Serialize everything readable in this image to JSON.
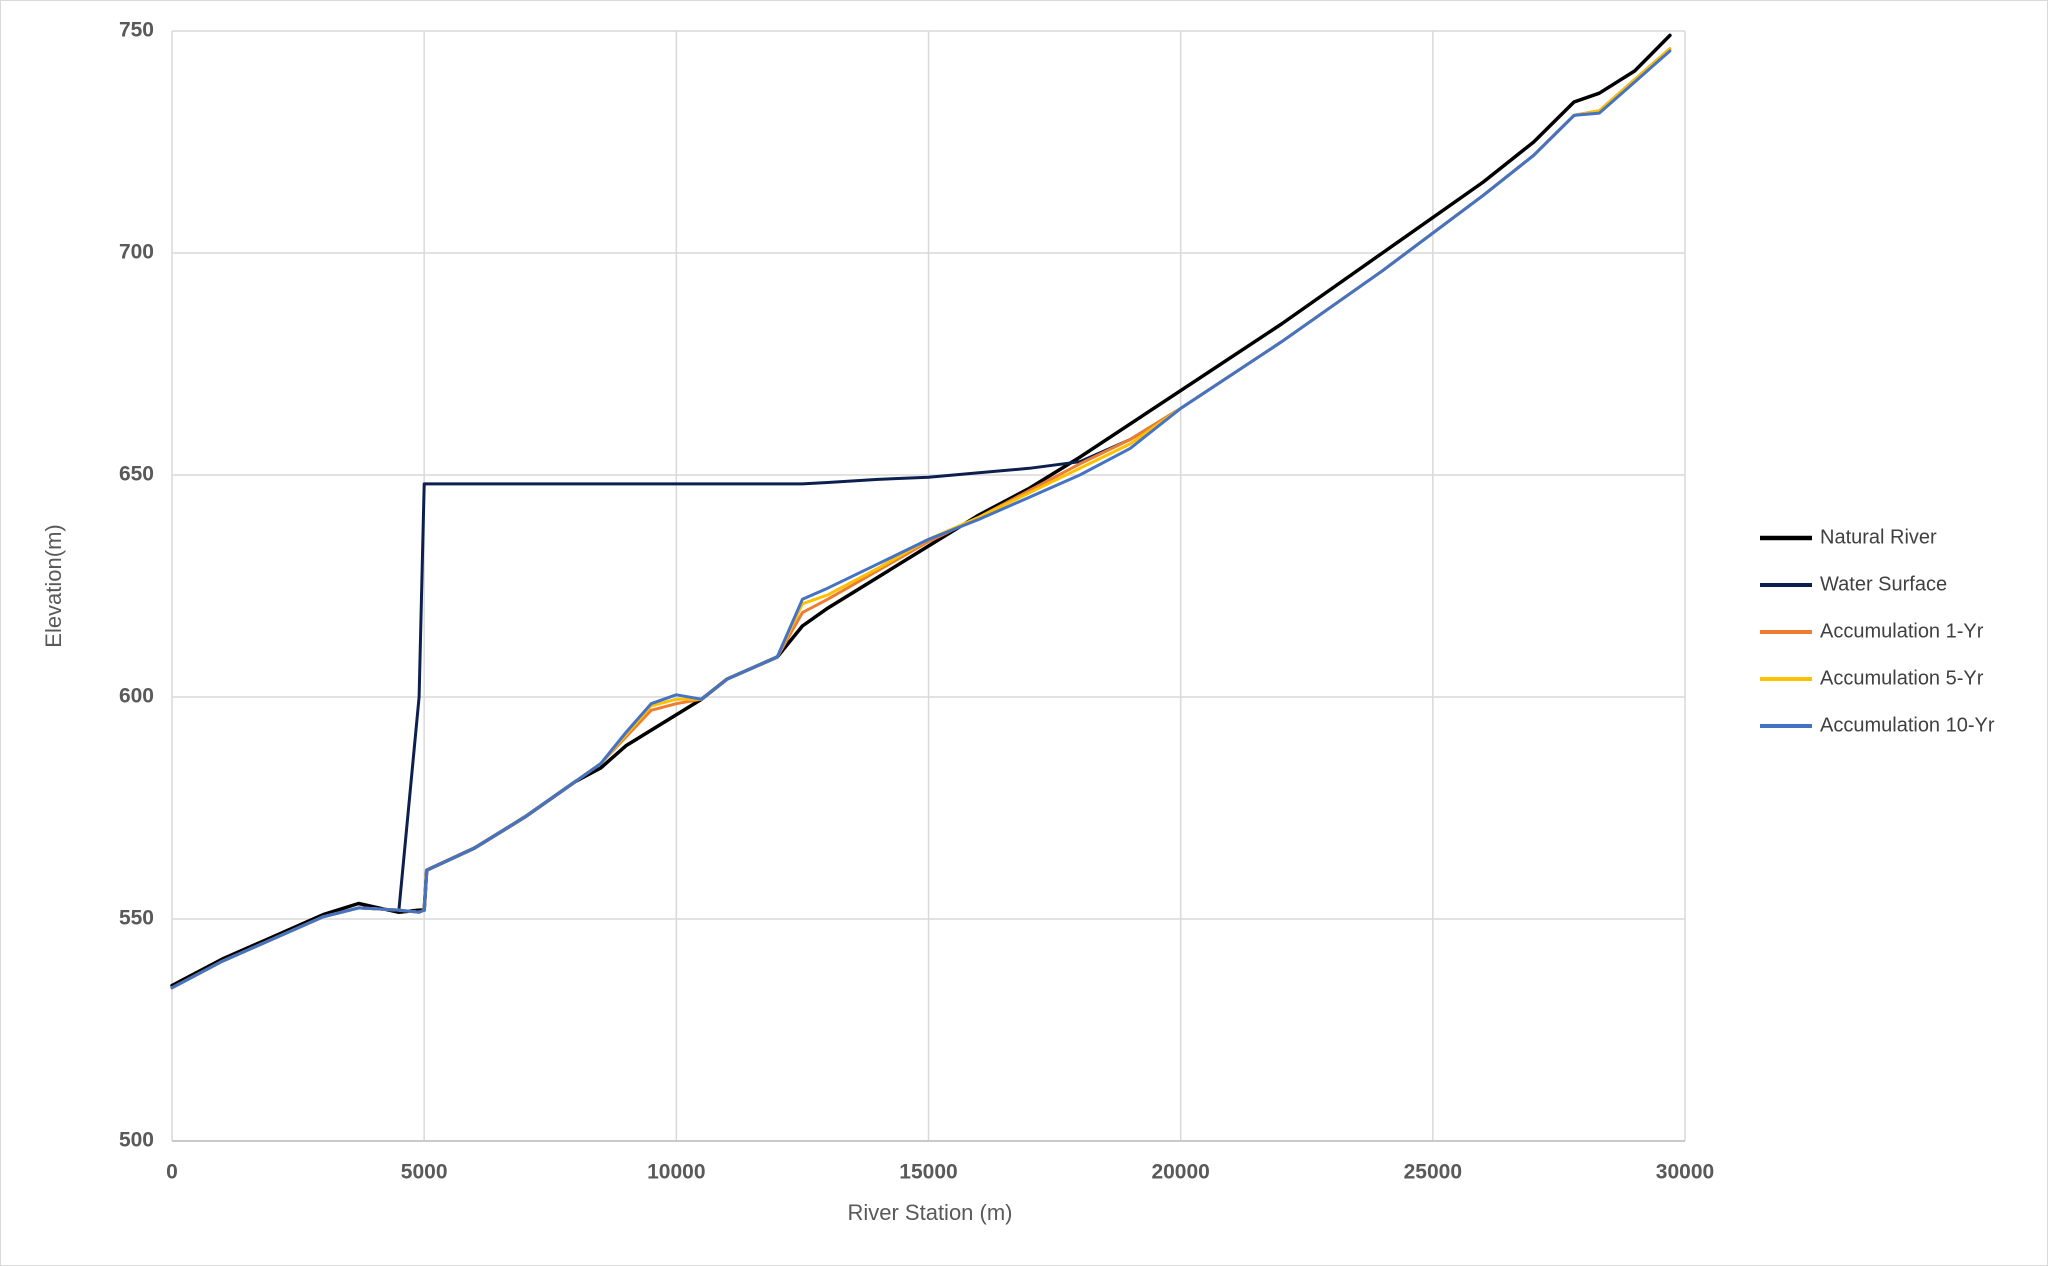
{
  "chart_data": {
    "type": "line",
    "x_label": "River Station (m)",
    "y_label": "Elevation(m)",
    "x": [
      0,
      1000,
      2000,
      3000,
      3700,
      4500,
      4900,
      5000,
      5050,
      6000,
      7000,
      8000,
      8500,
      9000,
      9500,
      10000,
      10500,
      11000,
      12000,
      12500,
      13000,
      14000,
      15000,
      16000,
      17000,
      18000,
      19000,
      20000,
      22000,
      24000,
      26000,
      27000,
      27800,
      28300,
      29000,
      29700
    ],
    "series": [
      {
        "name": "Natural River",
        "color": "#000000",
        "width": 3.5,
        "values": [
          535,
          541,
          546,
          551,
          553.5,
          551.5,
          552,
          552,
          561,
          566,
          573,
          581,
          584,
          589,
          592.5,
          596,
          599.5,
          604,
          609,
          616,
          620,
          627,
          634,
          641,
          647,
          654,
          661.5,
          669,
          684,
          700,
          716,
          725,
          734,
          736,
          741,
          749
        ]
      },
      {
        "name": "Water Surface",
        "color": "#0d1f4f",
        "width": 3,
        "values": [
          534.5,
          540.5,
          545.5,
          550.5,
          552.5,
          552,
          600,
          648,
          648,
          648,
          648,
          648,
          648,
          648,
          648,
          648,
          648,
          648,
          648,
          648,
          648.3,
          649,
          649.5,
          650.5,
          651.5,
          653,
          658,
          665,
          680,
          696,
          713,
          722,
          731,
          732,
          739,
          746
        ]
      },
      {
        "name": "Accumulation 1-Yr",
        "color": "#ed7d31",
        "width": 3,
        "values": [
          534.5,
          540.5,
          545.5,
          550.5,
          552.5,
          552,
          551.5,
          552,
          561,
          566,
          573,
          581,
          585,
          591,
          597,
          598.5,
          599.5,
          604,
          609,
          619,
          622,
          628.5,
          635,
          640.5,
          646.5,
          652.5,
          658,
          665,
          680,
          696,
          713,
          722,
          731,
          732,
          739,
          746
        ]
      },
      {
        "name": "Accumulation 5-Yr",
        "color": "#ffc000",
        "width": 3,
        "values": [
          534.5,
          540.5,
          545.5,
          550.5,
          552.5,
          552,
          551.5,
          552,
          561,
          566,
          573,
          581,
          585,
          591.5,
          598,
          599.5,
          599.5,
          604,
          609,
          621,
          623,
          629,
          635.5,
          640.5,
          646,
          651.5,
          657,
          665,
          680,
          696,
          713,
          722,
          731,
          732,
          739,
          746
        ]
      },
      {
        "name": "Accumulation 10-Yr",
        "color": "#4472c4",
        "width": 3,
        "values": [
          534.5,
          540.5,
          545.5,
          550.5,
          552.5,
          552,
          551.5,
          552,
          561,
          566,
          573,
          581,
          585,
          592,
          598.5,
          600.5,
          599.5,
          604,
          609,
          622,
          624.5,
          630,
          635.5,
          640,
          645,
          650,
          656,
          665,
          680,
          696,
          713,
          722,
          731,
          731.5,
          738.5,
          745.5
        ]
      }
    ],
    "xlim": [
      0,
      30000
    ],
    "xticks": [
      0,
      5000,
      10000,
      15000,
      20000,
      25000,
      30000
    ],
    "ylim": [
      500,
      750
    ],
    "yticks": [
      500,
      550,
      600,
      650,
      700,
      750
    ],
    "grid": true,
    "legend": "right"
  }
}
